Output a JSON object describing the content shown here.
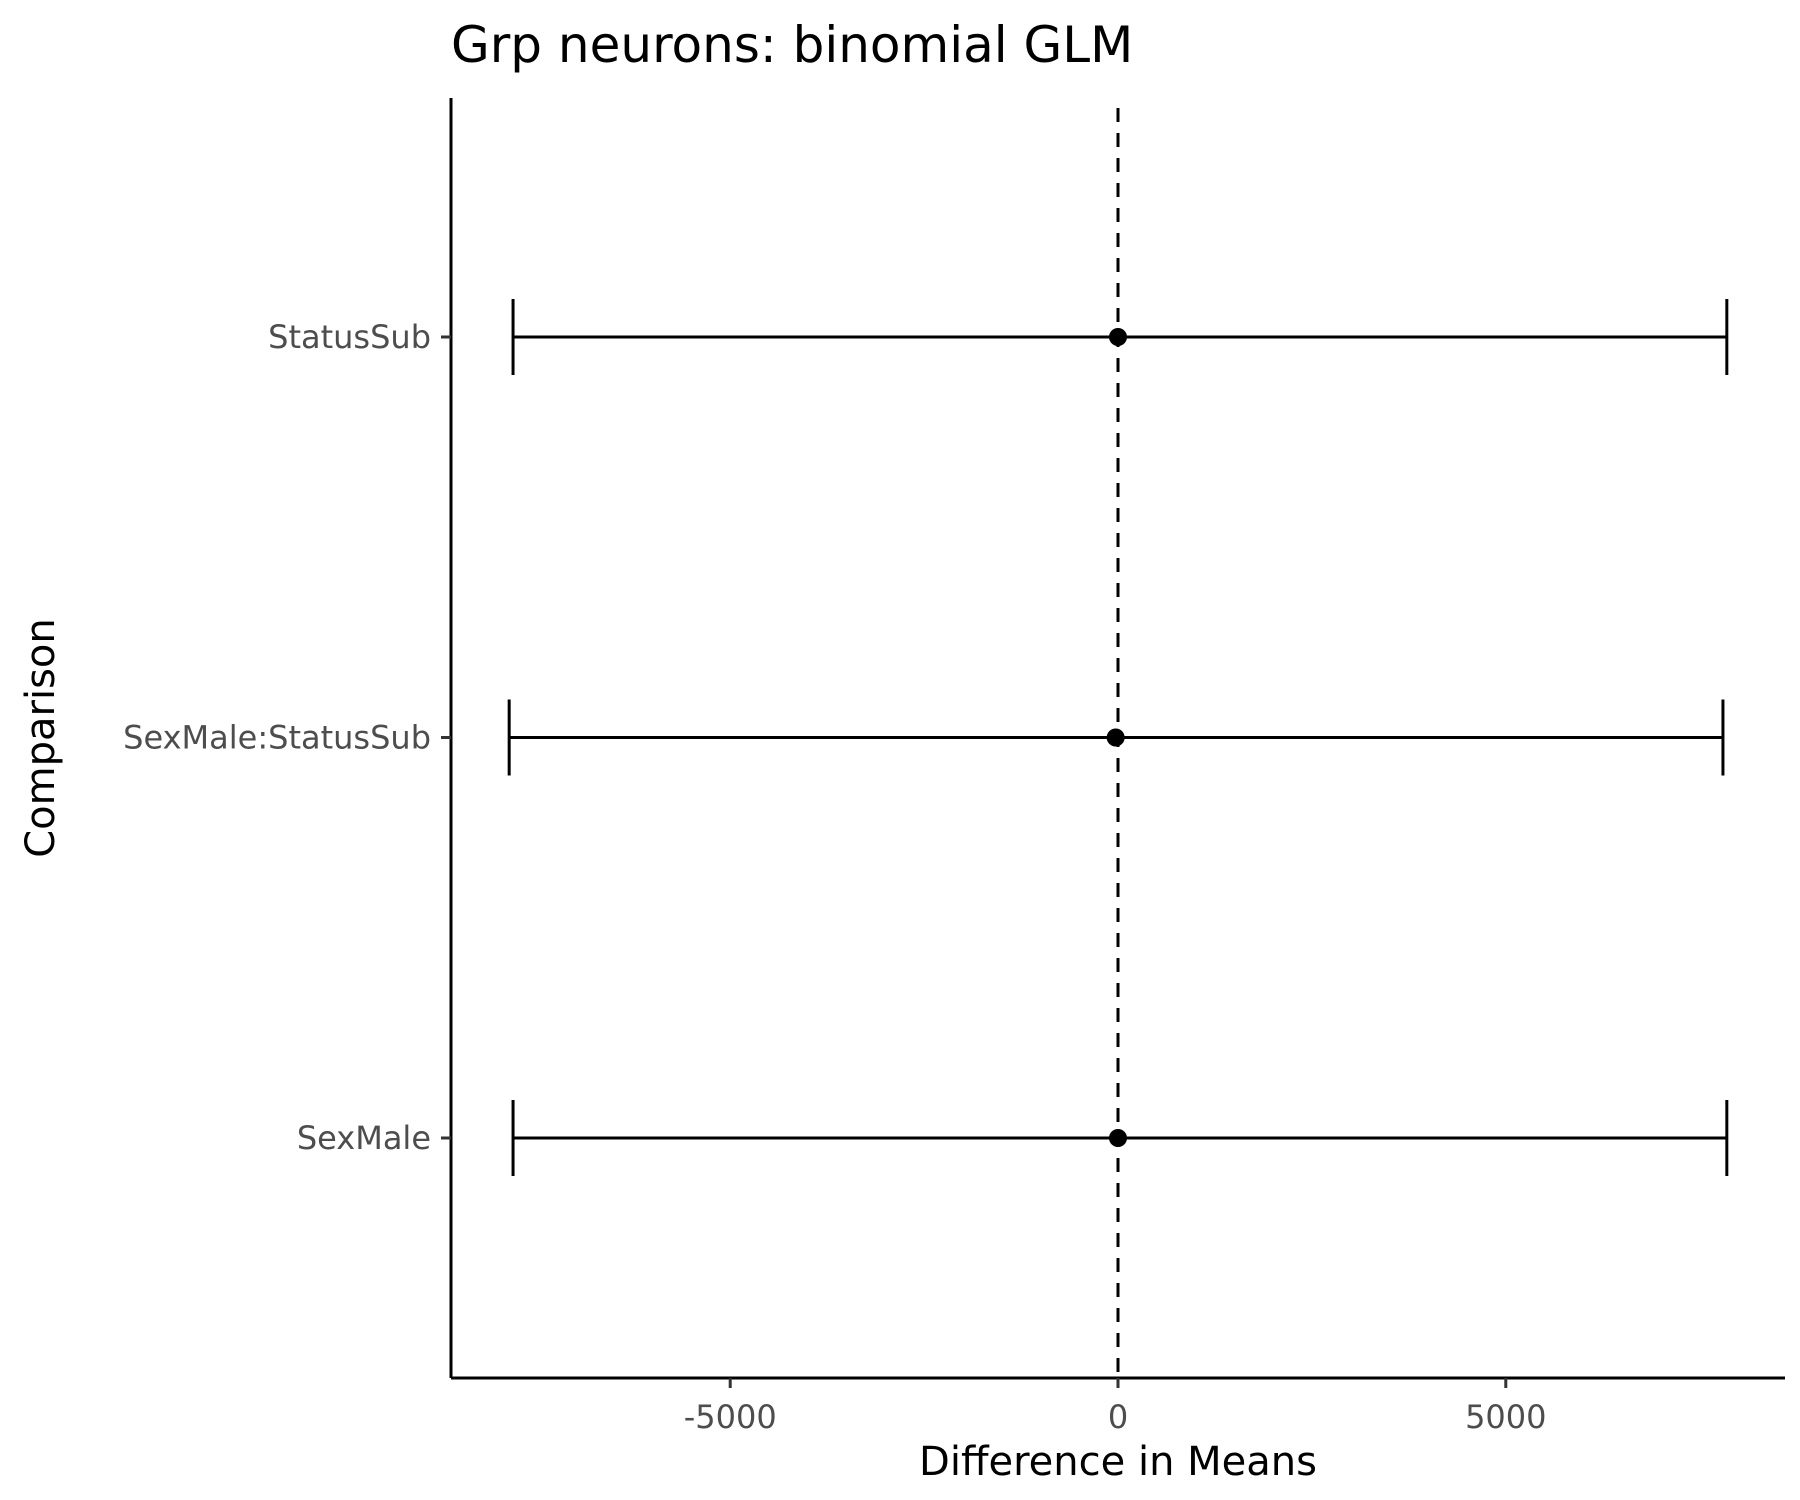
{
  "chart_data": {
    "type": "errorbar",
    "title": "Grp neurons: binomial GLM",
    "xlabel": "Difference in Means",
    "ylabel": "Comparison",
    "xlim": [
      -8600,
      8600
    ],
    "x_ticks": [
      -5000,
      0,
      5000
    ],
    "x_tick_labels": [
      "-5000",
      "0",
      "5000"
    ],
    "reference_line": {
      "x": 0,
      "style": "dashed"
    },
    "grid": false,
    "categories": [
      "StatusSub",
      "SexMale:StatusSub",
      "SexMale"
    ],
    "points": [
      {
        "label": "StatusSub",
        "estimate": 0,
        "lower": -7800,
        "upper": 7850
      },
      {
        "label": "SexMale:StatusSub",
        "estimate": -30,
        "lower": -7850,
        "upper": 7800
      },
      {
        "label": "SexMale",
        "estimate": 0,
        "lower": -7800,
        "upper": 7850
      }
    ]
  }
}
